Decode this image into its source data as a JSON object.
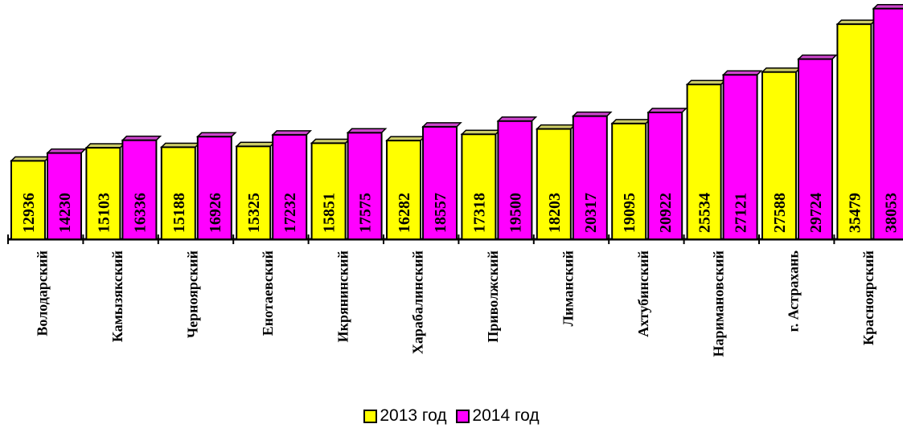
{
  "chart_data": {
    "type": "bar",
    "title": "",
    "xlabel": "",
    "ylabel": "",
    "categories": [
      "Володарский",
      "Камызякский",
      "Черноярский",
      "Енотаевский",
      "Икрянинский",
      "Харабалинский",
      "Приволжский",
      "Лиманский",
      "Ахтубинский",
      "Наримановский",
      "г. Астрахань",
      "Красноярский"
    ],
    "series": [
      {
        "name": "2013 год",
        "values": [
          12936,
          15103,
          15188,
          15325,
          15851,
          16282,
          17318,
          18203,
          19095,
          25534,
          27588,
          35479
        ]
      },
      {
        "name": "2014 год",
        "values": [
          14230,
          16336,
          16926,
          17232,
          17575,
          18557,
          19500,
          20317,
          20922,
          27121,
          29724,
          38053
        ]
      }
    ],
    "ylim": [
      0,
      40000
    ],
    "grid": false,
    "legend_position": "bottom",
    "colors": {
      "s2013": "#ffff00",
      "s2014": "#ff00ff",
      "outline": "#000000",
      "top_2013": "#cccc66",
      "top_2014": "#cc44cc"
    }
  }
}
